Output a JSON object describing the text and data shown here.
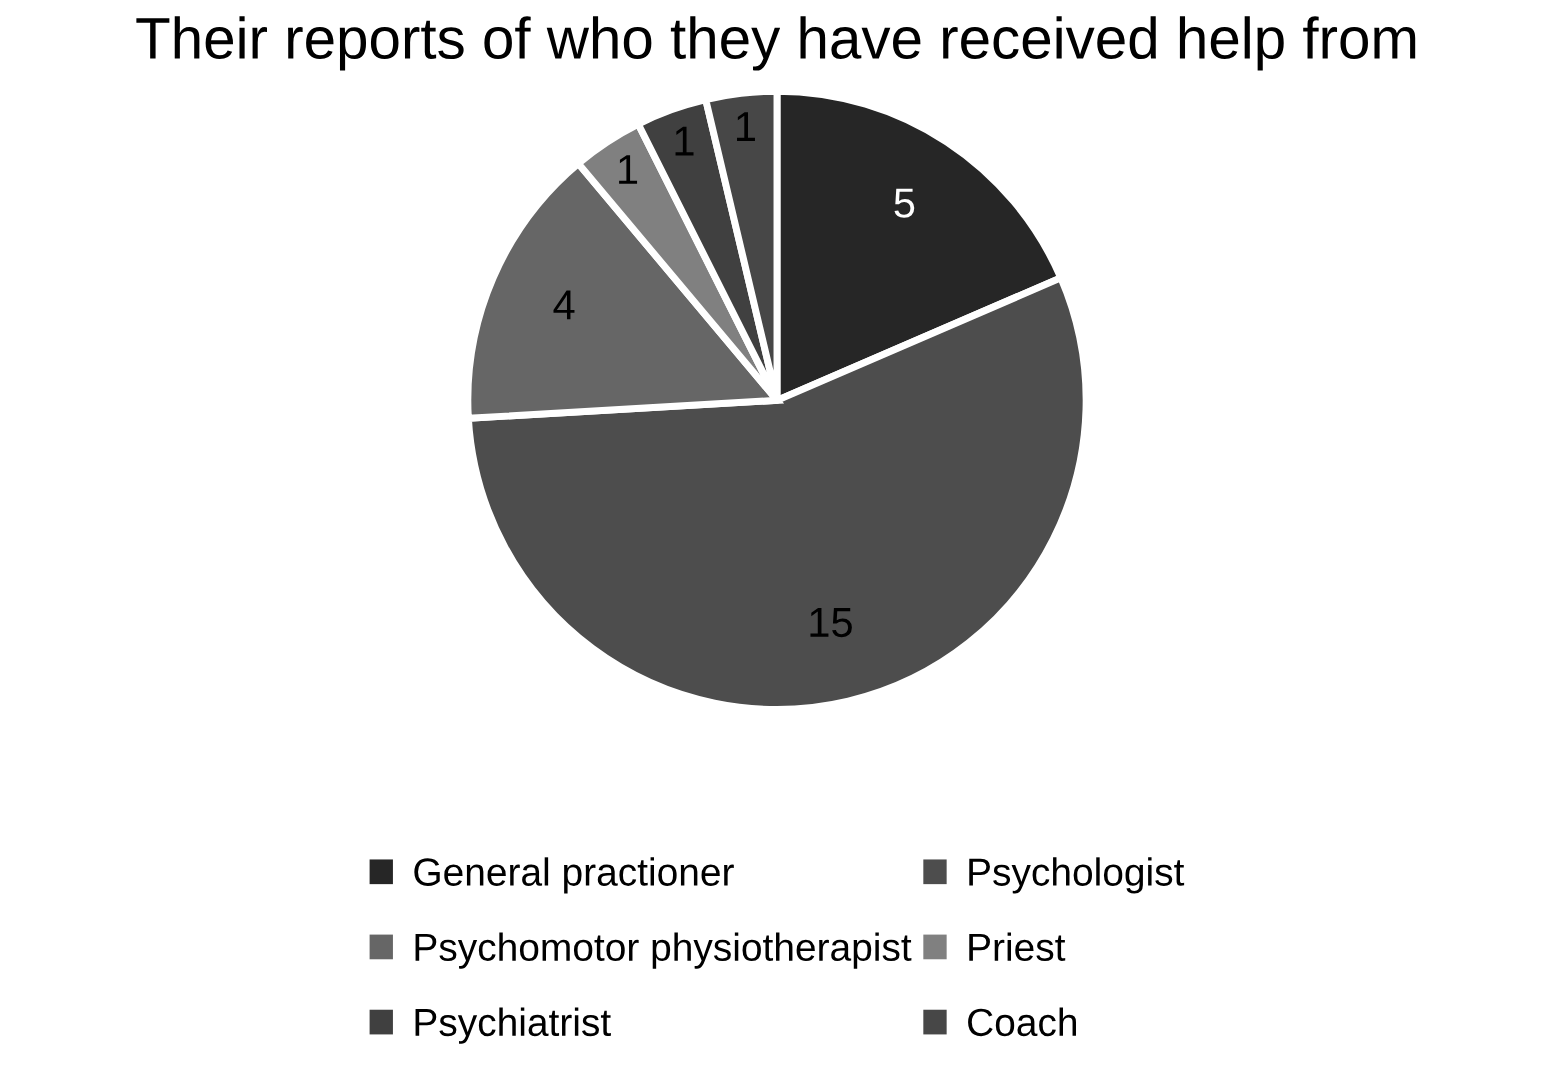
{
  "chart_data": {
    "type": "pie",
    "title": "Their reports of who they have received help from",
    "categories": [
      "General practioner",
      "Psychologist",
      "Psychomotor physiotherapist",
      "Priest",
      "Psychiatrist",
      "Coach"
    ],
    "values": [
      5,
      15,
      4,
      1,
      1,
      1
    ],
    "colors": [
      "#262626",
      "#4d4d4d",
      "#666666",
      "#808080",
      "#404040",
      "#474747"
    ],
    "data_labels": true,
    "legend": "bottom"
  }
}
